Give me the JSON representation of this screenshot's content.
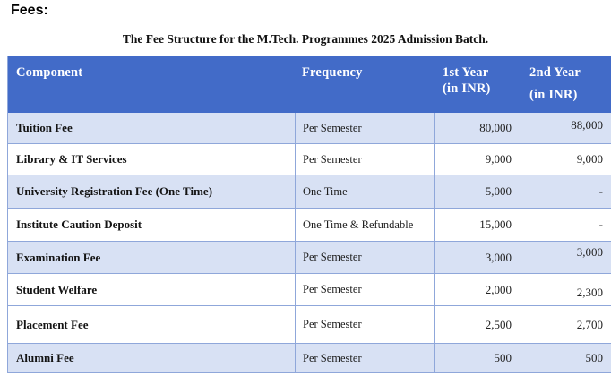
{
  "page": {
    "heading": "Fees:",
    "table_title": "The Fee Structure for the M.Tech. Programmes 2025 Admission Batch."
  },
  "table": {
    "columns": [
      {
        "key": "component",
        "line1": "Component"
      },
      {
        "key": "frequency",
        "line1": "Frequency"
      },
      {
        "key": "year1",
        "line1": "1st Year",
        "line2": "(in INR)"
      },
      {
        "key": "year2",
        "line1": "2nd Year",
        "line2": "(in INR)"
      }
    ],
    "rows": [
      {
        "component": "Tuition Fee",
        "frequency": "Per Semester",
        "year1": "80,000",
        "year2": "88,000"
      },
      {
        "component": "Library & IT Services",
        "frequency": "Per Semester",
        "year1": "9,000",
        "year2": "9,000"
      },
      {
        "component": "University Registration Fee (One Time)",
        "frequency": "One Time",
        "year1": "5,000",
        "year2": "-"
      },
      {
        "component": "Institute Caution Deposit",
        "frequency": "One Time & Refundable",
        "year1": "15,000",
        "year2": "-"
      },
      {
        "component": "Examination Fee",
        "frequency": "Per Semester",
        "year1": "3,000",
        "year2": "3,000"
      },
      {
        "component": "Student Welfare",
        "frequency": "Per Semester",
        "year1": "2,000",
        "year2": "2,300"
      },
      {
        "component": "Placement Fee",
        "frequency": "Per Semester",
        "year1": "2,500",
        "year2": "2,700"
      },
      {
        "component": "Alumni Fee",
        "frequency": "Per Semester",
        "year1": "500",
        "year2": "500"
      }
    ],
    "colors": {
      "header_bg": "#426BC8",
      "band_bg": "#D8E1F4",
      "border": "#8FA7DA",
      "header_text": "#FFFFFF"
    }
  }
}
